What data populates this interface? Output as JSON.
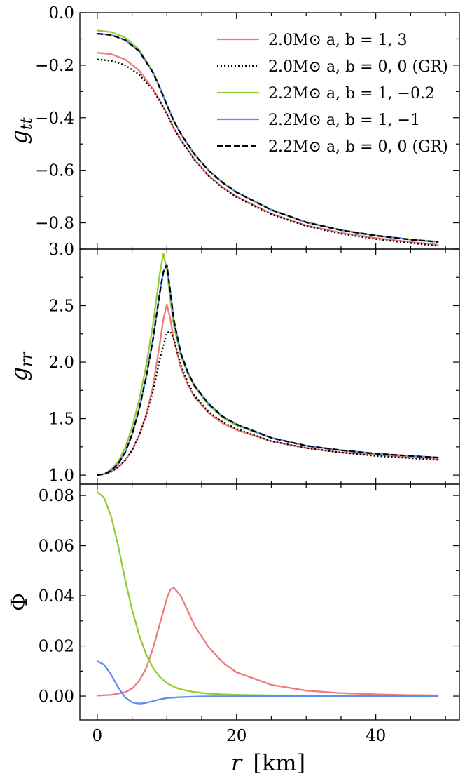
{
  "chart_data": {
    "type": "line",
    "x_axis": {
      "label": "r [km]",
      "label_var": "r",
      "label_unit": "[km]",
      "range": [
        -2.5,
        52
      ],
      "ticks": [
        0,
        20,
        40
      ],
      "tick_labels": [
        "0",
        "20",
        "40"
      ]
    },
    "series_styles": [
      {
        "key": "s1",
        "name": "2.0M⊙ a, b = 1, 3",
        "color": "#ee7b7b",
        "dash": "solid"
      },
      {
        "key": "s2",
        "name": "2.0M⊙ a, b = 0, 0 (GR)",
        "color": "#000000",
        "dash": "dotted"
      },
      {
        "key": "s3",
        "name": "2.2M⊙ a, b = 1, −0.2",
        "color": "#93cc37",
        "dash": "solid"
      },
      {
        "key": "s4",
        "name": "2.2M⊙ a, b = 1, −1",
        "color": "#5b8ff0",
        "dash": "solid"
      },
      {
        "key": "s5",
        "name": "2.2M⊙ a, b = 0, 0 (GR)",
        "color": "#000000",
        "dash": "dashed"
      }
    ],
    "panels": [
      {
        "ylabel": "g_tt",
        "ylabel_main": "g",
        "ylabel_sub": "tt",
        "ylim": [
          -0.9,
          0.0
        ],
        "yticks": [
          0.0,
          -0.2,
          -0.4,
          -0.6,
          -0.8
        ],
        "ytick_labels": [
          "0.0",
          "−0.2",
          "−0.4",
          "−0.6",
          "−0.8"
        ],
        "series": [
          {
            "key": "s1",
            "x": [
              0,
              2,
              4,
              6,
              8,
              9,
              10,
              11,
              12,
              14,
              16,
              18,
              20,
              25,
              30,
              35,
              40,
              45,
              49
            ],
            "y": [
              -0.153,
              -0.158,
              -0.178,
              -0.22,
              -0.29,
              -0.335,
              -0.385,
              -0.44,
              -0.484,
              -0.56,
              -0.62,
              -0.665,
              -0.7,
              -0.765,
              -0.81,
              -0.838,
              -0.858,
              -0.873,
              -0.884
            ]
          },
          {
            "key": "s2",
            "x": [
              0,
              2,
              4,
              6,
              8,
              9,
              10,
              11,
              12,
              14,
              16,
              18,
              20,
              25,
              30,
              35,
              40,
              45,
              49
            ],
            "y": [
              -0.178,
              -0.183,
              -0.2,
              -0.235,
              -0.295,
              -0.338,
              -0.386,
              -0.44,
              -0.485,
              -0.562,
              -0.622,
              -0.667,
              -0.702,
              -0.768,
              -0.812,
              -0.842,
              -0.862,
              -0.877,
              -0.888
            ]
          },
          {
            "key": "s3",
            "x": [
              0,
              2,
              4,
              6,
              8,
              9,
              10,
              11,
              12,
              14,
              16,
              18,
              20,
              25,
              30,
              35,
              40,
              45,
              49
            ],
            "y": [
              -0.068,
              -0.074,
              -0.095,
              -0.14,
              -0.225,
              -0.285,
              -0.35,
              -0.412,
              -0.46,
              -0.54,
              -0.6,
              -0.646,
              -0.683,
              -0.75,
              -0.797,
              -0.827,
              -0.848,
              -0.863,
              -0.872
            ]
          },
          {
            "key": "s4",
            "x": [
              0,
              2,
              4,
              6,
              8,
              9,
              10,
              11,
              12,
              14,
              16,
              18,
              20,
              25,
              30,
              35,
              40,
              45,
              49
            ],
            "y": [
              -0.08,
              -0.085,
              -0.104,
              -0.146,
              -0.228,
              -0.287,
              -0.351,
              -0.413,
              -0.461,
              -0.541,
              -0.601,
              -0.647,
              -0.684,
              -0.751,
              -0.798,
              -0.828,
              -0.849,
              -0.864,
              -0.873
            ]
          },
          {
            "key": "s5",
            "x": [
              0,
              2,
              4,
              6,
              8,
              9,
              10,
              11,
              12,
              14,
              16,
              18,
              20,
              25,
              30,
              35,
              40,
              45,
              49
            ],
            "y": [
              -0.08,
              -0.085,
              -0.104,
              -0.146,
              -0.228,
              -0.287,
              -0.351,
              -0.413,
              -0.461,
              -0.541,
              -0.601,
              -0.647,
              -0.684,
              -0.751,
              -0.798,
              -0.828,
              -0.849,
              -0.864,
              -0.873
            ]
          }
        ]
      },
      {
        "ylabel": "g_rr",
        "ylabel_main": "g",
        "ylabel_sub": "rr",
        "ylim": [
          0.92,
          3.0
        ],
        "yticks": [
          1.0,
          1.5,
          2.0,
          2.5,
          3.0
        ],
        "ytick_labels": [
          "1.0",
          "1.5",
          "2.0",
          "2.5",
          "3.0"
        ],
        "series": [
          {
            "key": "s1",
            "x": [
              0,
              1,
              2,
              3,
              4,
              5,
              6,
              7,
              8,
              9,
              9.5,
              10,
              10.5,
              11,
              12,
              13,
              14,
              16,
              18,
              20,
              25,
              30,
              35,
              40,
              45,
              49
            ],
            "y": [
              1.0,
              1.01,
              1.03,
              1.07,
              1.13,
              1.22,
              1.35,
              1.53,
              1.78,
              2.17,
              2.38,
              2.51,
              2.38,
              2.2,
              1.95,
              1.8,
              1.69,
              1.55,
              1.46,
              1.4,
              1.3,
              1.24,
              1.2,
              1.18,
              1.16,
              1.145
            ]
          },
          {
            "key": "s2",
            "x": [
              0,
              1,
              2,
              3,
              4,
              5,
              6,
              7,
              8,
              9,
              10,
              10.5,
              11,
              12,
              13,
              14,
              16,
              18,
              20,
              25,
              30,
              35,
              40,
              45,
              49
            ],
            "y": [
              1.0,
              1.01,
              1.03,
              1.07,
              1.13,
              1.22,
              1.35,
              1.52,
              1.74,
              2.03,
              2.26,
              2.27,
              2.2,
              1.98,
              1.82,
              1.7,
              1.56,
              1.47,
              1.41,
              1.3,
              1.24,
              1.2,
              1.17,
              1.15,
              1.135
            ]
          },
          {
            "key": "s3",
            "x": [
              0,
              1,
              2,
              3,
              4,
              5,
              6,
              7,
              8,
              9,
              9.5,
              10,
              10.5,
              11,
              12,
              13,
              14,
              16,
              18,
              20,
              25,
              30,
              35,
              40,
              45,
              49
            ],
            "y": [
              1.0,
              1.01,
              1.05,
              1.12,
              1.24,
              1.42,
              1.66,
              1.96,
              2.33,
              2.79,
              2.96,
              2.82,
              2.55,
              2.32,
              2.06,
              1.9,
              1.78,
              1.62,
              1.51,
              1.44,
              1.33,
              1.26,
              1.22,
              1.19,
              1.17,
              1.155
            ]
          },
          {
            "key": "s4",
            "x": [
              0,
              1,
              2,
              3,
              4,
              5,
              6,
              7,
              8,
              9,
              9.5,
              10,
              10.5,
              11,
              12,
              13,
              14,
              16,
              18,
              20,
              25,
              30,
              35,
              40,
              45,
              49
            ],
            "y": [
              1.0,
              1.01,
              1.04,
              1.1,
              1.2,
              1.36,
              1.58,
              1.86,
              2.2,
              2.62,
              2.8,
              2.86,
              2.62,
              2.37,
              2.08,
              1.91,
              1.79,
              1.63,
              1.52,
              1.45,
              1.33,
              1.26,
              1.22,
              1.19,
              1.17,
              1.155
            ]
          },
          {
            "key": "s5",
            "x": [
              0,
              1,
              2,
              3,
              4,
              5,
              6,
              7,
              8,
              9,
              9.5,
              10,
              10.5,
              11,
              12,
              13,
              14,
              16,
              18,
              20,
              25,
              30,
              35,
              40,
              45,
              49
            ],
            "y": [
              1.0,
              1.01,
              1.04,
              1.1,
              1.2,
              1.36,
              1.58,
              1.86,
              2.2,
              2.62,
              2.8,
              2.86,
              2.62,
              2.37,
              2.08,
              1.91,
              1.79,
              1.63,
              1.52,
              1.45,
              1.33,
              1.26,
              1.22,
              1.19,
              1.17,
              1.155
            ]
          }
        ]
      },
      {
        "ylabel": "Φ",
        "ylabel_main": "Φ",
        "ylabel_sub": "",
        "ylim": [
          -0.0095,
          0.0845
        ],
        "yticks": [
          0.0,
          0.02,
          0.04,
          0.06,
          0.08
        ],
        "ytick_labels": [
          "0.00",
          "0.02",
          "0.04",
          "0.06",
          "0.08"
        ],
        "series": [
          {
            "key": "s1",
            "x": [
              0,
              2,
              4,
              5,
              6,
              7,
              8,
              9,
              10,
              10.5,
              11,
              12,
              13,
              14,
              16,
              18,
              20,
              25,
              30,
              35,
              40,
              45,
              49
            ],
            "y": [
              0.0002,
              0.0005,
              0.0015,
              0.003,
              0.006,
              0.011,
              0.019,
              0.029,
              0.039,
              0.0425,
              0.0432,
              0.04,
              0.034,
              0.028,
              0.0195,
              0.0135,
              0.0095,
              0.0045,
              0.0022,
              0.0012,
              0.0007,
              0.0004,
              0.0003
            ]
          },
          {
            "key": "s3",
            "x": [
              0,
              1,
              2,
              3,
              4,
              5,
              6,
              7,
              8,
              9,
              10,
              11,
              12,
              14,
              16,
              18,
              20,
              25,
              30,
              35,
              40,
              45,
              49
            ],
            "y": [
              0.0815,
              0.079,
              0.0715,
              0.06,
              0.0465,
              0.0345,
              0.0245,
              0.0168,
              0.0113,
              0.0076,
              0.0052,
              0.0037,
              0.0027,
              0.0016,
              0.001,
              0.0007,
              0.0005,
              0.0003,
              0.0002,
              0.00015,
              0.0001,
              0.0001,
              0.0001
            ]
          },
          {
            "key": "s4",
            "x": [
              0,
              1,
              2,
              3,
              4,
              5,
              6,
              7,
              8,
              9,
              10,
              12,
              14,
              16,
              20,
              25,
              30,
              40,
              49
            ],
            "y": [
              0.014,
              0.0125,
              0.0085,
              0.0035,
              -0.0005,
              -0.0025,
              -0.003,
              -0.0027,
              -0.002,
              -0.0013,
              -0.0008,
              -0.0004,
              -0.0002,
              -0.0001,
              -5e-05,
              -3e-05,
              -2e-05,
              -1e-05,
              -1e-05
            ]
          }
        ]
      }
    ]
  }
}
